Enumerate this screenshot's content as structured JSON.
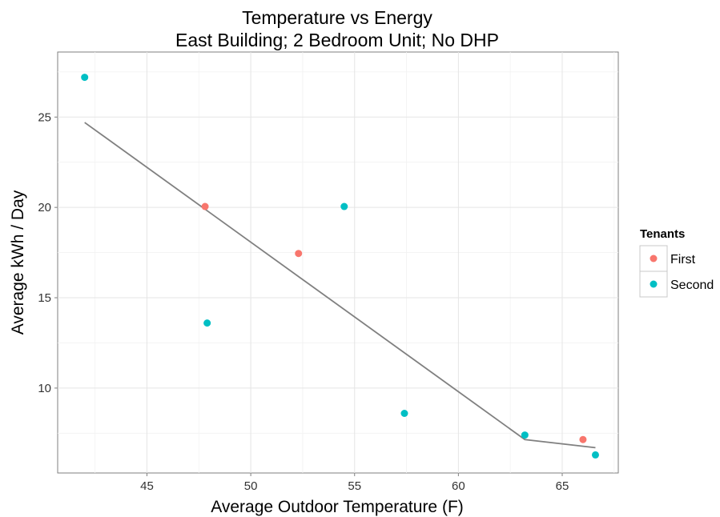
{
  "chart_data": {
    "type": "scatter",
    "title": "Temperature vs Energy",
    "subtitle": "East Building; 2 Bedroom Unit; No DHP",
    "xlabel": "Average Outdoor Temperature (F)",
    "ylabel": "Average kWh / Day",
    "xlim": [
      40.7,
      67.7
    ],
    "ylim": [
      5.3,
      28.6
    ],
    "x_ticks": [
      45,
      50,
      55,
      60,
      65
    ],
    "y_ticks": [
      10,
      15,
      20,
      25
    ],
    "grid": true,
    "legend": {
      "title": "Tenants",
      "placement": "right",
      "entries": [
        "First",
        "Second"
      ]
    },
    "series": [
      {
        "name": "First",
        "color": "#F8766D",
        "points": [
          {
            "x": 47.8,
            "y": 20.05
          },
          {
            "x": 52.3,
            "y": 17.45
          },
          {
            "x": 66.0,
            "y": 7.15
          }
        ]
      },
      {
        "name": "Second",
        "color": "#00BFC4",
        "points": [
          {
            "x": 42.0,
            "y": 27.2
          },
          {
            "x": 47.9,
            "y": 13.6
          },
          {
            "x": 54.5,
            "y": 20.05
          },
          {
            "x": 57.4,
            "y": 8.6
          },
          {
            "x": 63.2,
            "y": 7.4
          },
          {
            "x": 66.6,
            "y": 6.3
          }
        ]
      }
    ],
    "trend_line": {
      "color": "#808080",
      "points": [
        {
          "x": 42.0,
          "y": 24.7
        },
        {
          "x": 63.2,
          "y": 7.15
        },
        {
          "x": 66.6,
          "y": 6.7
        }
      ]
    }
  }
}
